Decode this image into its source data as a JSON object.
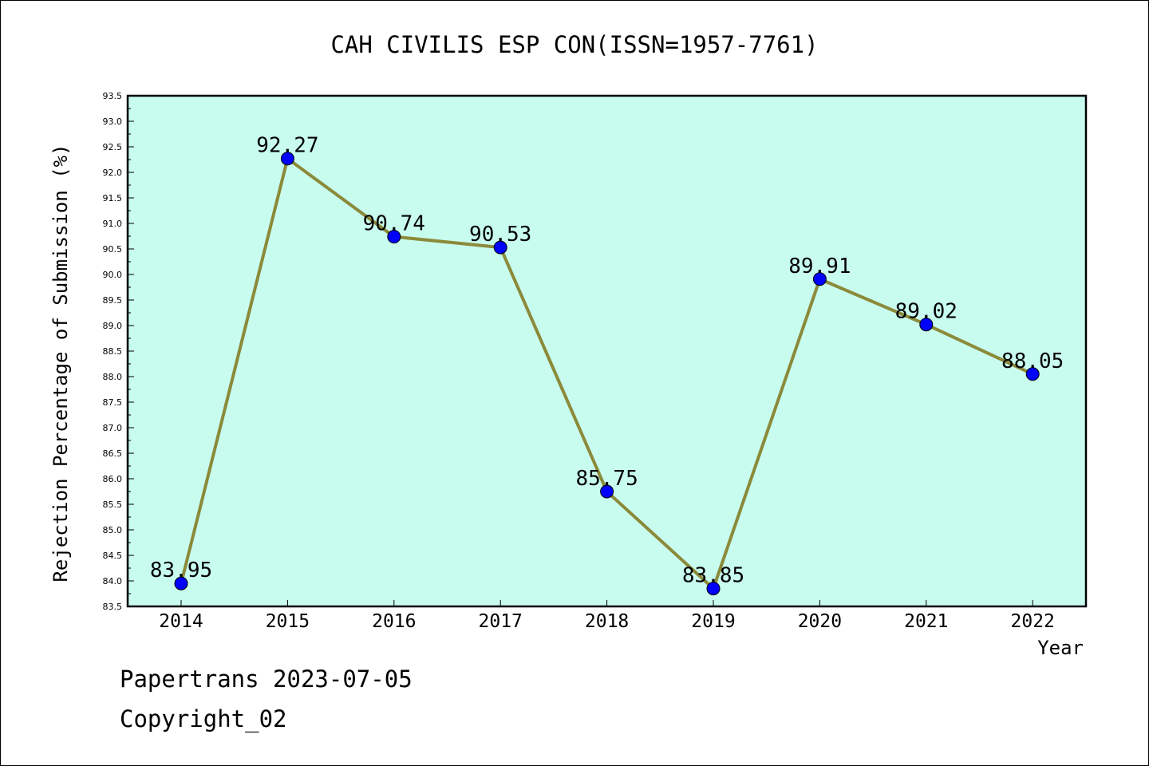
{
  "chart_data": {
    "type": "line",
    "title": "CAH CIVILIS ESP CON(ISSN=1957-7761)",
    "xlabel": "Year",
    "ylabel": "Rejection Percentage of Submission (%)",
    "categories": [
      "2014",
      "2015",
      "2016",
      "2017",
      "2018",
      "2019",
      "2020",
      "2021",
      "2022"
    ],
    "series": [
      {
        "values": [
          83.95,
          92.27,
          90.74,
          90.53,
          85.75,
          83.85,
          89.91,
          89.02,
          88.05
        ]
      }
    ],
    "data_labels": [
      "83.95",
      "92.27",
      "90.74",
      "90.53",
      "85.75",
      "83.85",
      "89.91",
      "89.02",
      "88.05"
    ],
    "ylim": [
      83.5,
      93.5
    ],
    "ytick_step": 0.5,
    "grid": false,
    "legend": "none",
    "colors": {
      "plot_background": "#c8fcef",
      "line": "#8b8a3a",
      "marker": "#0000ff"
    }
  },
  "footer": {
    "line1": "Papertrans 2023-07-05",
    "line2": "Copyright_02"
  }
}
